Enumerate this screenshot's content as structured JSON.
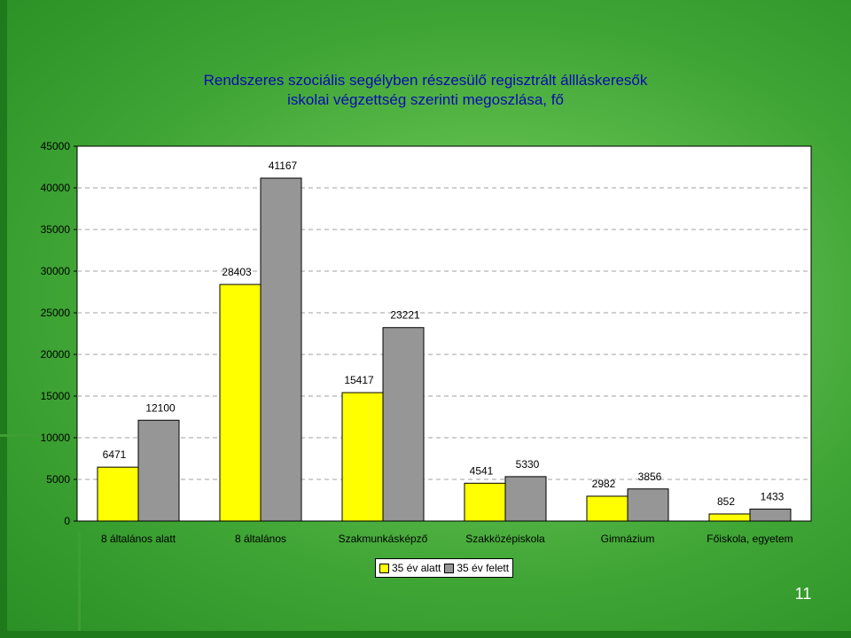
{
  "chart_data": {
    "type": "bar",
    "title": [
      "Rendszeres szociális segélyben részesülő regisztrált állláskeresők",
      "iskolai végzettség szerinti megoszlása, fő"
    ],
    "categories": [
      "8 általános alatt",
      "8 általános",
      "Szakmunkásképző",
      "Szakközépiskola",
      "Gimnázium",
      "Főiskola, egyetem"
    ],
    "series": [
      {
        "name": "35 év alatt",
        "color": "#ffff00",
        "values": [
          6471,
          28403,
          15417,
          4541,
          2982,
          852
        ]
      },
      {
        "name": "35 év felett",
        "color": "#969696",
        "values": [
          12100,
          41167,
          23221,
          5330,
          3856,
          1433
        ]
      }
    ],
    "y_ticks": [
      0,
      5000,
      10000,
      15000,
      20000,
      25000,
      30000,
      35000,
      40000,
      45000
    ],
    "ylim": [
      0,
      45000
    ],
    "grid": true,
    "legend_position": "bottom"
  },
  "slide_number": "11"
}
